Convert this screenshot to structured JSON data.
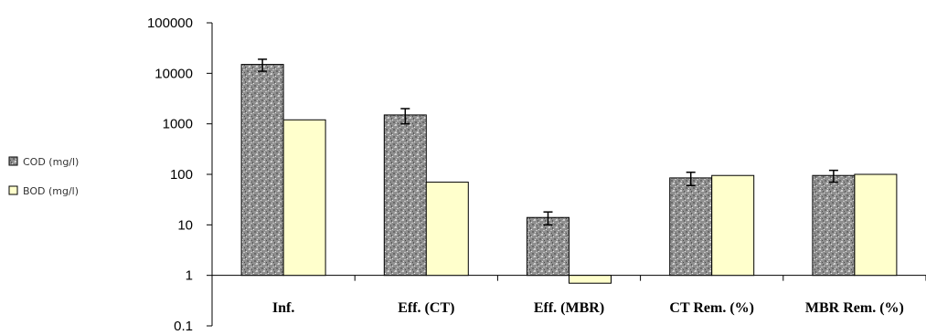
{
  "chart_data": {
    "type": "bar",
    "scale": "log",
    "ylim": [
      0.1,
      100000
    ],
    "yticks": [
      "100000",
      "10000",
      "1000",
      "100",
      "10",
      "1",
      "0.1"
    ],
    "categories": [
      "Inf.",
      "Eff. (CT)",
      "Eff. (MBR)",
      "CT Rem. (%)",
      "MBR Rem. (%)"
    ],
    "series": [
      {
        "name": "COD (mg/l)",
        "values": [
          15000,
          1500,
          14,
          85,
          95
        ],
        "error": [
          4000,
          500,
          4,
          25,
          25
        ],
        "color": "#9a9a9a",
        "pattern": "speckled-gray"
      },
      {
        "name": "BOD (mg/l)",
        "values": [
          1200,
          70,
          0.7,
          95,
          100
        ],
        "color": "#ffffcc"
      }
    ],
    "grid": false,
    "legend_position": "left",
    "xlabel": "",
    "ylabel": ""
  }
}
